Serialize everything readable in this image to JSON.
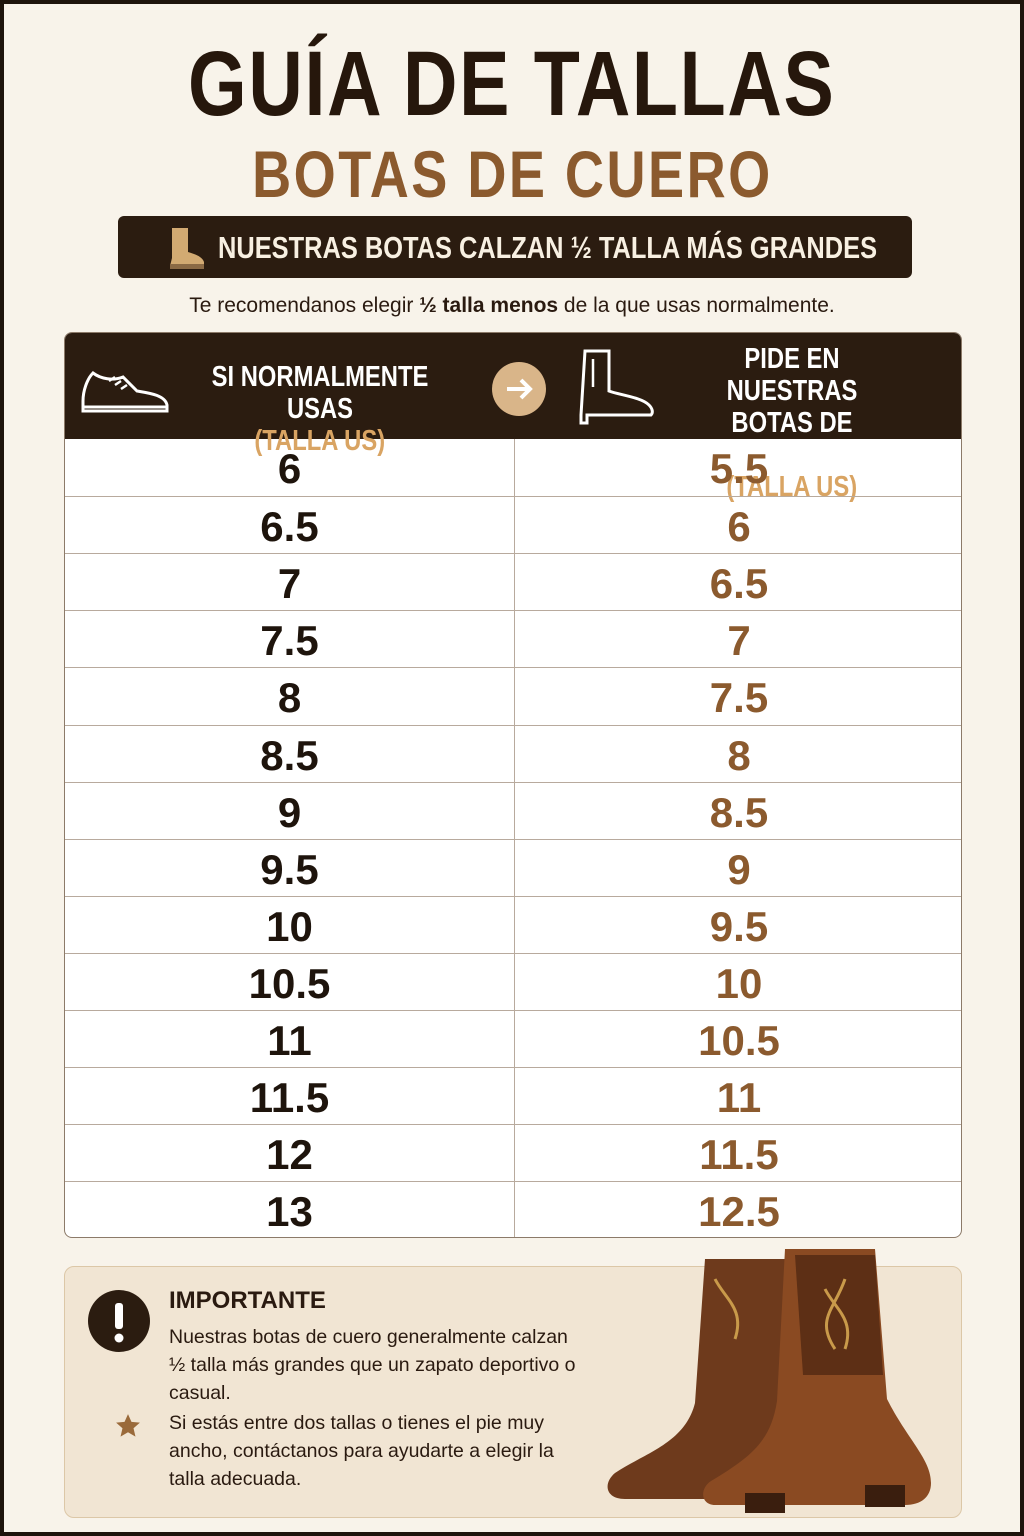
{
  "header": {
    "title": "GUÍA DE TALLAS",
    "subtitle": "BOTAS DE CUERO",
    "banner": "NUESTRAS BOTAS CALZAN ½ TALLA MÁS GRANDES",
    "recommendation": {
      "before": "Te recomendanos elegir ",
      "bold": "½ talla menos",
      "after": " de la que usas normalmente."
    }
  },
  "table": {
    "header": [
      {
        "label": "SI NORMALMENTE USAS",
        "unit": "(TALLA US)"
      },
      {
        "label": "PIDE EN NUESTRAS BOTAS DE CUERO",
        "unit": "(TALLA US)"
      }
    ],
    "rows": [
      [
        "6",
        "5.5"
      ],
      [
        "6.5",
        "6"
      ],
      [
        "7",
        "6.5"
      ],
      [
        "7.5",
        "7"
      ],
      [
        "8",
        "7.5"
      ],
      [
        "8.5",
        "8"
      ],
      [
        "9",
        "8.5"
      ],
      [
        "9.5",
        "9"
      ],
      [
        "10",
        "9.5"
      ],
      [
        "10.5",
        "10"
      ],
      [
        "11",
        "10.5"
      ],
      [
        "11.5",
        "11"
      ],
      [
        "12",
        "11.5"
      ],
      [
        "13",
        "12.5"
      ]
    ]
  },
  "note": {
    "title": "IMPORTANTE",
    "text": "Nuestras botas de cuero generalmente calzan ½ talla más grandes que un zapato deportivo o casual.",
    "tip": "Si estás entre dos tallas o tienes el pie muy ancho, contáctanos para ayudarte a elegir la talla adecuada."
  }
}
